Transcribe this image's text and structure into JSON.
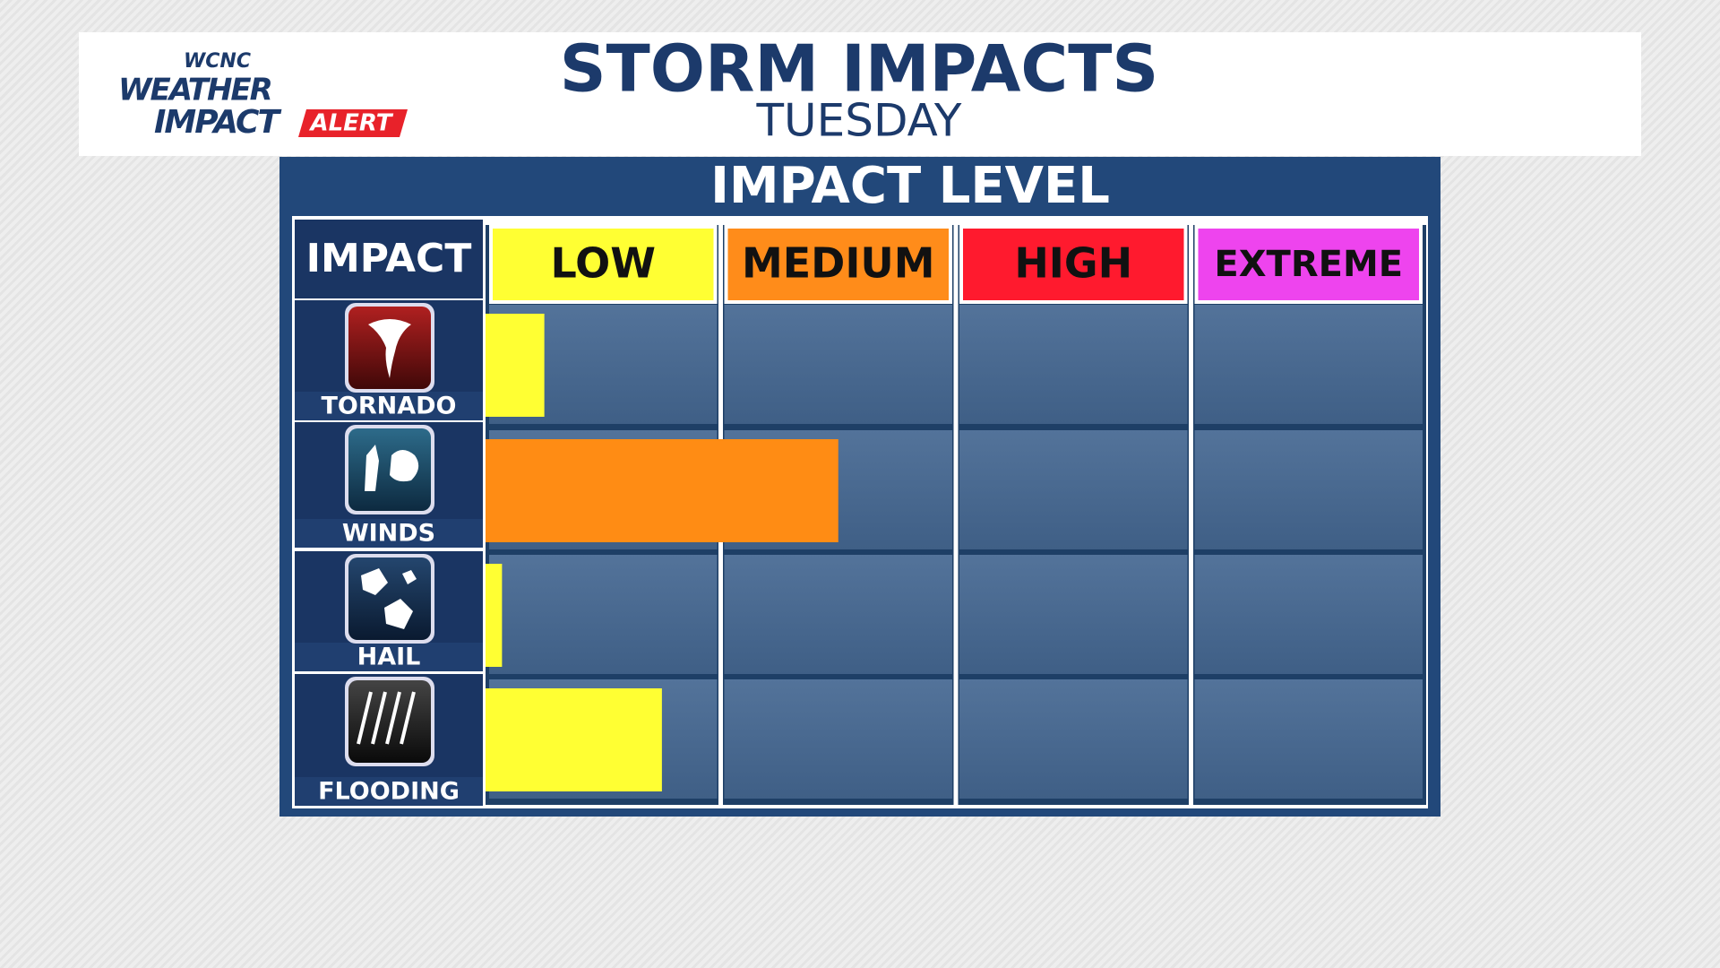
{
  "logo": {
    "station": "WCNC",
    "line1": "WEATHER",
    "line2": "IMPACT",
    "badge": "ALERT"
  },
  "chart_data": {
    "type": "barh",
    "title": "STORM IMPACTS",
    "subtitle": "TUESDAY",
    "axis_title": "IMPACT LEVEL",
    "category_header": "IMPACT",
    "categories": [
      "TORNADO",
      "WINDS",
      "HAIL",
      "FLOODING"
    ],
    "levels": [
      {
        "name": "LOW",
        "color": "#ffff33"
      },
      {
        "name": "MEDIUM",
        "color": "#ff8c1a"
      },
      {
        "name": "HIGH",
        "color": "#ff1a2e"
      },
      {
        "name": "EXTREME",
        "color": "#ee44ee"
      }
    ],
    "values": [
      0.25,
      1.5,
      0.07,
      0.75
    ],
    "colors": [
      "#ffff33",
      "#ff8c14",
      "#ffff33",
      "#ffff33"
    ],
    "xlim": [
      0,
      4
    ]
  }
}
